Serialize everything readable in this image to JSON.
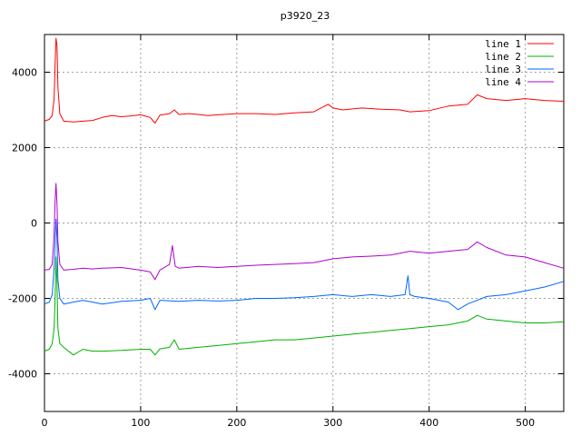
{
  "chart_data": {
    "type": "line",
    "title": "p3920_23",
    "xlabel": "",
    "ylabel": "",
    "xlim": [
      0,
      540
    ],
    "ylim": [
      -5000,
      5000
    ],
    "xticks": [
      0,
      100,
      200,
      300,
      400,
      500
    ],
    "yticks": [
      -4000,
      -2000,
      0,
      2000,
      4000
    ],
    "grid": true,
    "legend_position": "top-right",
    "series": [
      {
        "name": "line 1",
        "color": "#ff0000",
        "x": [
          0,
          5,
          8,
          10,
          11,
          12,
          13,
          14,
          16,
          20,
          30,
          40,
          50,
          60,
          70,
          80,
          90,
          100,
          110,
          115,
          120,
          130,
          135,
          140,
          150,
          160,
          170,
          180,
          200,
          220,
          240,
          260,
          280,
          295,
          300,
          310,
          330,
          350,
          370,
          380,
          400,
          420,
          440,
          450,
          460,
          480,
          500,
          520,
          540
        ],
        "y": [
          2700,
          2750,
          2850,
          3300,
          4200,
          4900,
          4700,
          3600,
          2900,
          2700,
          2680,
          2700,
          2720,
          2800,
          2850,
          2820,
          2840,
          2870,
          2800,
          2650,
          2860,
          2900,
          3000,
          2880,
          2900,
          2880,
          2850,
          2870,
          2900,
          2900,
          2880,
          2920,
          2950,
          3150,
          3050,
          3000,
          3050,
          3020,
          3000,
          2950,
          2980,
          3100,
          3150,
          3400,
          3300,
          3250,
          3300,
          3250,
          3230
        ]
      },
      {
        "name": "line 2",
        "color": "#00b000",
        "x": [
          0,
          5,
          8,
          10,
          11,
          12,
          13,
          14,
          16,
          20,
          30,
          40,
          50,
          60,
          80,
          100,
          110,
          115,
          120,
          130,
          135,
          140,
          160,
          180,
          200,
          220,
          240,
          260,
          280,
          300,
          320,
          340,
          360,
          380,
          400,
          420,
          440,
          450,
          460,
          480,
          500,
          520,
          540
        ],
        "y": [
          -3400,
          -3350,
          -3200,
          -2800,
          -2000,
          -900,
          -1600,
          -2800,
          -3200,
          -3300,
          -3500,
          -3350,
          -3400,
          -3400,
          -3380,
          -3350,
          -3350,
          -3500,
          -3340,
          -3300,
          -3100,
          -3350,
          -3300,
          -3250,
          -3200,
          -3150,
          -3100,
          -3100,
          -3050,
          -3000,
          -2950,
          -2900,
          -2850,
          -2800,
          -2750,
          -2700,
          -2600,
          -2450,
          -2550,
          -2600,
          -2650,
          -2650,
          -2620
        ]
      },
      {
        "name": "line 3",
        "color": "#0066ff",
        "x": [
          0,
          5,
          8,
          10,
          11,
          12,
          13,
          14,
          16,
          20,
          30,
          40,
          50,
          60,
          80,
          100,
          110,
          115,
          120,
          140,
          160,
          180,
          200,
          220,
          240,
          260,
          280,
          300,
          320,
          340,
          360,
          375,
          378,
          380,
          385,
          400,
          420,
          430,
          440,
          460,
          480,
          500,
          520,
          540
        ],
        "y": [
          -2150,
          -2100,
          -1900,
          -1200,
          -500,
          100,
          -400,
          -1500,
          -2000,
          -2150,
          -2100,
          -2050,
          -2100,
          -2150,
          -2080,
          -2050,
          -2000,
          -2300,
          -2050,
          -2080,
          -2050,
          -2070,
          -2050,
          -2000,
          -2000,
          -1980,
          -1950,
          -1900,
          -1950,
          -1900,
          -1950,
          -1900,
          -1400,
          -1900,
          -1950,
          -2000,
          -2100,
          -2300,
          -2150,
          -1950,
          -1900,
          -1800,
          -1700,
          -1550
        ]
      },
      {
        "name": "line 4",
        "color": "#b000d0",
        "x": [
          0,
          5,
          8,
          10,
          11,
          12,
          13,
          14,
          16,
          20,
          30,
          40,
          50,
          60,
          80,
          100,
          110,
          115,
          120,
          130,
          133,
          136,
          140,
          160,
          180,
          200,
          220,
          240,
          260,
          280,
          300,
          320,
          340,
          360,
          380,
          400,
          420,
          440,
          450,
          460,
          480,
          500,
          520,
          540
        ],
        "y": [
          -1250,
          -1230,
          -1100,
          -300,
          600,
          1050,
          500,
          -500,
          -1100,
          -1250,
          -1230,
          -1200,
          -1220,
          -1200,
          -1180,
          -1250,
          -1300,
          -1500,
          -1250,
          -1100,
          -600,
          -1150,
          -1200,
          -1150,
          -1180,
          -1150,
          -1120,
          -1100,
          -1080,
          -1050,
          -950,
          -900,
          -880,
          -850,
          -750,
          -800,
          -750,
          -700,
          -500,
          -650,
          -850,
          -900,
          -1050,
          -1200
        ]
      }
    ]
  }
}
